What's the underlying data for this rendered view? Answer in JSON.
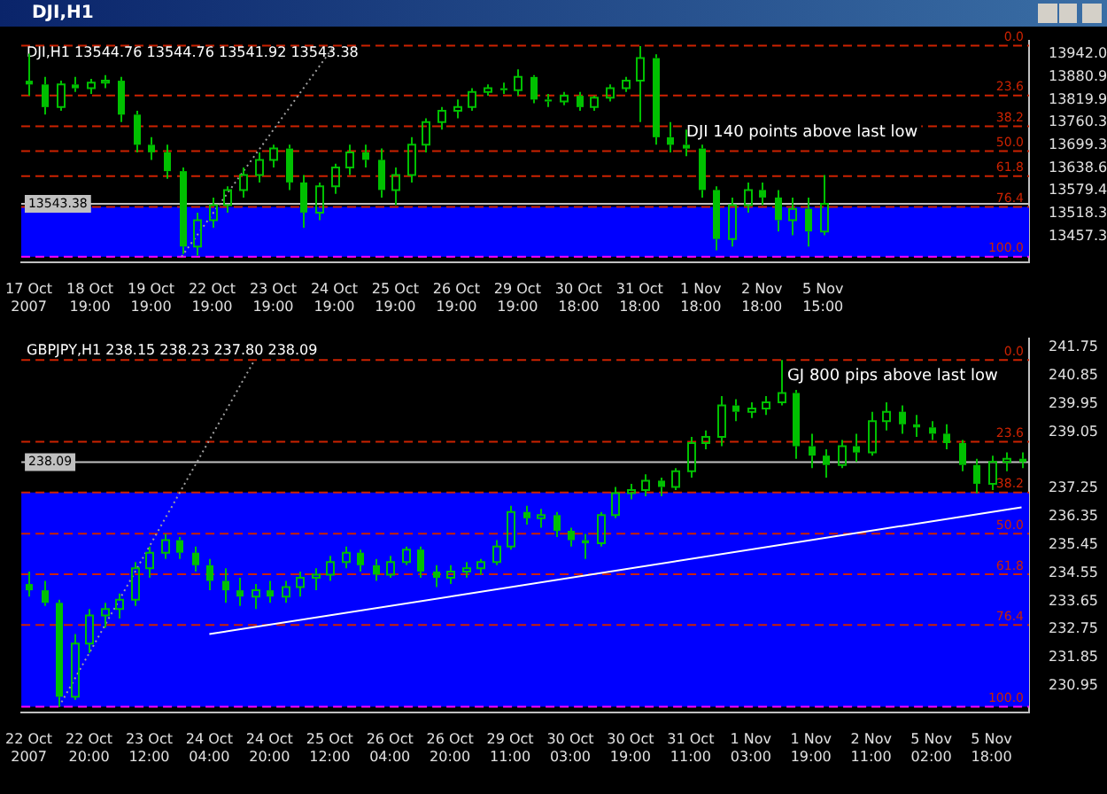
{
  "chart_data": [
    {
      "type": "candlestick",
      "title": "DJI,H1",
      "color": "#00c000",
      "categories": [
        "17 Oct 2007",
        null,
        null,
        null,
        "18 Oct 19:00",
        null,
        null,
        null,
        "19 Oct 19:00",
        null,
        null,
        null,
        "22 Oct 19:00",
        null,
        null,
        null,
        "23 Oct 19:00",
        null,
        null,
        null,
        "24 Oct 19:00",
        null,
        null,
        null,
        "25 Oct 19:00",
        null,
        null,
        null,
        "26 Oct 19:00",
        null,
        null,
        null,
        "29 Oct 19:00",
        null,
        null,
        null,
        "30 Oct 18:00",
        null,
        null,
        null,
        "31 Oct 18:00",
        null,
        null,
        null,
        "1 Nov 18:00",
        null,
        null,
        null,
        "2 Nov 18:00",
        null,
        null,
        null,
        "5 Nov 15:00",
        null,
        null,
        null,
        null,
        null,
        null,
        null,
        null,
        null,
        null,
        null,
        null,
        null
      ],
      "ohlc": [
        [
          13870,
          13942,
          13830,
          13860
        ],
        [
          13860,
          13880,
          13780,
          13800
        ],
        [
          13800,
          13870,
          13790,
          13860
        ],
        [
          13860,
          13880,
          13840,
          13850
        ],
        [
          13850,
          13875,
          13835,
          13865
        ],
        [
          13865,
          13885,
          13850,
          13870
        ],
        [
          13870,
          13880,
          13760,
          13780
        ],
        [
          13780,
          13790,
          13680,
          13700
        ],
        [
          13700,
          13720,
          13660,
          13680
        ],
        [
          13680,
          13700,
          13610,
          13630
        ],
        [
          13630,
          13640,
          13410,
          13430
        ],
        [
          13430,
          13520,
          13405,
          13500
        ],
        [
          13500,
          13560,
          13480,
          13540
        ],
        [
          13540,
          13590,
          13520,
          13580
        ],
        [
          13580,
          13640,
          13560,
          13620
        ],
        [
          13620,
          13680,
          13600,
          13660
        ],
        [
          13660,
          13700,
          13640,
          13690
        ],
        [
          13690,
          13700,
          13580,
          13600
        ],
        [
          13600,
          13620,
          13480,
          13520
        ],
        [
          13520,
          13600,
          13500,
          13590
        ],
        [
          13590,
          13650,
          13570,
          13640
        ],
        [
          13640,
          13700,
          13620,
          13680
        ],
        [
          13680,
          13700,
          13640,
          13660
        ],
        [
          13660,
          13690,
          13560,
          13580
        ],
        [
          13580,
          13640,
          13540,
          13620
        ],
        [
          13620,
          13720,
          13600,
          13700
        ],
        [
          13700,
          13770,
          13680,
          13760
        ],
        [
          13760,
          13800,
          13740,
          13790
        ],
        [
          13790,
          13820,
          13770,
          13800
        ],
        [
          13800,
          13850,
          13790,
          13840
        ],
        [
          13840,
          13860,
          13830,
          13850
        ],
        [
          13850,
          13865,
          13835,
          13845
        ],
        [
          13845,
          13900,
          13830,
          13880
        ],
        [
          13880,
          13885,
          13810,
          13820
        ],
        [
          13820,
          13835,
          13800,
          13815
        ],
        [
          13815,
          13840,
          13805,
          13830
        ],
        [
          13830,
          13840,
          13790,
          13800
        ],
        [
          13800,
          13830,
          13790,
          13825
        ],
        [
          13825,
          13860,
          13815,
          13850
        ],
        [
          13850,
          13880,
          13840,
          13870
        ],
        [
          13870,
          13962,
          13760,
          13930
        ],
        [
          13930,
          13940,
          13700,
          13720
        ],
        [
          13720,
          13760,
          13680,
          13700
        ],
        [
          13700,
          13740,
          13670,
          13690
        ],
        [
          13690,
          13700,
          13560,
          13580
        ],
        [
          13580,
          13590,
          13420,
          13450
        ],
        [
          13450,
          13560,
          13430,
          13540
        ],
        [
          13540,
          13600,
          13520,
          13580
        ],
        [
          13580,
          13600,
          13540,
          13560
        ],
        [
          13560,
          13580,
          13470,
          13500
        ],
        [
          13500,
          13560,
          13460,
          13530
        ],
        [
          13530,
          13560,
          13430,
          13470
        ],
        [
          13470,
          13620,
          13460,
          13543.38
        ],
        null,
        null,
        null,
        null,
        null,
        null,
        null,
        null,
        null,
        null,
        null,
        null,
        null
      ],
      "series": [
        {
          "type": "line",
          "color": "#a0a0a0",
          "line_style": "dotted",
          "values": [
            null,
            null,
            null,
            null,
            null,
            null,
            null,
            null,
            null,
            null,
            13403,
            null,
            null,
            null,
            null,
            null,
            null,
            null,
            null,
            null,
            13963,
            null,
            null,
            null,
            null,
            null,
            null,
            null,
            null,
            null,
            null,
            null,
            null,
            null,
            null,
            null,
            null,
            null,
            null,
            null,
            null,
            null,
            null,
            null,
            null,
            null,
            null,
            null,
            null,
            null,
            null,
            null,
            null,
            null,
            null,
            null,
            null,
            null,
            null,
            null,
            null,
            null,
            null,
            null,
            null,
            null
          ]
        }
      ],
      "ylim": [
        13389,
        13977
      ],
      "yticks": [
        {
          "value": 13942,
          "label": "13942.0"
        },
        13880.9,
        13819.9,
        13760.3,
        13699.3,
        13638.6,
        13579.4,
        13518.3,
        13457.3
      ],
      "bands": [
        {
          "axis": "y",
          "from": 13403,
          "to": 13535,
          "color": "#0000ff"
        }
      ],
      "ref_lines": [
        {
          "axis": "y",
          "value": 13963,
          "color": "#cc2200",
          "line_style": "dashed"
        },
        {
          "axis": "y",
          "value": 13831,
          "color": "#cc2200",
          "line_style": "dashed"
        },
        {
          "axis": "y",
          "value": 13749,
          "color": "#cc2200",
          "line_style": "dashed"
        },
        {
          "axis": "y",
          "value": 13683,
          "color": "#cc2200",
          "line_style": "dashed"
        },
        {
          "axis": "y",
          "value": 13617,
          "color": "#cc2200",
          "line_style": "dashed"
        },
        {
          "axis": "y",
          "value": 13535,
          "color": "#cc2200",
          "line_style": "dashed"
        },
        {
          "axis": "y",
          "value": 13403,
          "color": "#ff00ff",
          "line_style": "dashed"
        },
        {
          "axis": "y",
          "value": 13543.38,
          "label": "13543.38",
          "color": "#c0c0c0",
          "line_style": "solid"
        }
      ],
      "annotations": [
        "DJI,H1 13544.76 13544.76 13541.92 13543.38",
        "DJI 140 points above last low",
        {
          "text": "0.0",
          "y": 13963
        },
        {
          "text": "23.6",
          "y": 13831
        },
        {
          "text": "38.2",
          "y": 13749
        },
        {
          "text": "50.0",
          "y": 13683
        },
        {
          "text": "61.8",
          "y": 13617
        },
        {
          "text": "76.4",
          "y": 13535
        },
        {
          "text": "100.0",
          "y": 13403
        }
      ]
    },
    {
      "type": "candlestick",
      "color": "#00c000",
      "categories": [
        "22 Oct 2007",
        null,
        null,
        null,
        "22 Oct 20:00",
        null,
        null,
        null,
        "23 Oct 12:00",
        null,
        null,
        null,
        "24 Oct 04:00",
        null,
        null,
        null,
        "24 Oct 20:00",
        null,
        null,
        null,
        "25 Oct 12:00",
        null,
        null,
        null,
        "26 Oct 04:00",
        null,
        null,
        null,
        "26 Oct 20:00",
        null,
        null,
        null,
        "29 Oct 11:00",
        null,
        null,
        null,
        "30 Oct 03:00",
        null,
        null,
        null,
        "30 Oct 19:00",
        null,
        null,
        null,
        "31 Oct 11:00",
        null,
        null,
        null,
        "1 Nov 03:00",
        null,
        null,
        null,
        "1 Nov 19:00",
        null,
        null,
        null,
        "2 Nov 11:00",
        null,
        null,
        null,
        "5 Nov 02:00",
        null,
        null,
        null,
        "5 Nov 18:00",
        null,
        null
      ],
      "ohlc": [
        [
          234.2,
          234.6,
          233.8,
          234.0
        ],
        [
          234.0,
          234.3,
          233.5,
          233.6
        ],
        [
          233.6,
          233.7,
          230.28,
          230.6
        ],
        [
          230.6,
          232.6,
          230.5,
          232.3
        ],
        [
          232.3,
          233.4,
          232.0,
          233.2
        ],
        [
          233.2,
          233.6,
          232.8,
          233.4
        ],
        [
          233.4,
          233.9,
          233.1,
          233.7
        ],
        [
          233.7,
          234.9,
          233.5,
          234.7
        ],
        [
          234.7,
          235.4,
          234.4,
          235.2
        ],
        [
          235.2,
          235.8,
          235.0,
          235.6
        ],
        [
          235.6,
          235.7,
          235.0,
          235.2
        ],
        [
          235.2,
          235.4,
          234.6,
          234.8
        ],
        [
          234.8,
          235.0,
          234.0,
          234.3
        ],
        [
          234.3,
          234.7,
          233.6,
          234.0
        ],
        [
          234.0,
          234.4,
          233.5,
          233.8
        ],
        [
          233.8,
          234.2,
          233.4,
          234.0
        ],
        [
          234.0,
          234.3,
          233.6,
          233.8
        ],
        [
          233.8,
          234.3,
          233.6,
          234.1
        ],
        [
          234.1,
          234.6,
          233.8,
          234.4
        ],
        [
          234.4,
          234.7,
          234.0,
          234.5
        ],
        [
          234.5,
          235.1,
          234.3,
          234.9
        ],
        [
          234.9,
          235.4,
          234.7,
          235.2
        ],
        [
          235.2,
          235.3,
          234.6,
          234.8
        ],
        [
          234.8,
          235.0,
          234.3,
          234.5
        ],
        [
          234.5,
          235.1,
          234.4,
          234.9
        ],
        [
          234.9,
          235.4,
          234.8,
          235.3
        ],
        [
          235.3,
          235.4,
          234.4,
          234.6
        ],
        [
          234.6,
          234.8,
          234.1,
          234.4
        ],
        [
          234.4,
          234.8,
          234.2,
          234.6
        ],
        [
          234.6,
          234.9,
          234.4,
          234.7
        ],
        [
          234.7,
          235.0,
          234.5,
          234.9
        ],
        [
          234.9,
          235.6,
          234.8,
          235.4
        ],
        [
          235.4,
          236.7,
          235.3,
          236.5
        ],
        [
          236.5,
          236.7,
          236.1,
          236.3
        ],
        [
          236.3,
          236.6,
          236.0,
          236.4
        ],
        [
          236.4,
          236.5,
          235.7,
          235.9
        ],
        [
          235.9,
          236.0,
          235.4,
          235.6
        ],
        [
          235.6,
          235.8,
          235.0,
          235.5
        ],
        [
          235.5,
          236.5,
          235.4,
          236.4
        ],
        [
          236.4,
          237.3,
          236.3,
          237.1
        ],
        [
          237.1,
          237.4,
          236.9,
          237.2
        ],
        [
          237.2,
          237.7,
          237.0,
          237.5
        ],
        [
          237.5,
          237.6,
          237.0,
          237.3
        ],
        [
          237.3,
          237.9,
          237.2,
          237.8
        ],
        [
          237.8,
          238.9,
          237.6,
          238.7
        ],
        [
          238.7,
          239.1,
          238.5,
          238.9
        ],
        [
          238.9,
          240.2,
          238.6,
          239.9
        ],
        [
          239.9,
          240.1,
          239.4,
          239.7
        ],
        [
          239.7,
          240.0,
          239.5,
          239.8
        ],
        [
          239.8,
          240.2,
          239.6,
          240.0
        ],
        [
          240.0,
          241.35,
          239.9,
          240.3
        ],
        [
          240.3,
          240.4,
          238.2,
          238.6
        ],
        [
          238.6,
          239.0,
          237.9,
          238.3
        ],
        [
          238.3,
          238.5,
          237.6,
          238.0
        ],
        [
          238.0,
          238.8,
          237.9,
          238.6
        ],
        [
          238.6,
          239.0,
          238.1,
          238.4
        ],
        [
          238.4,
          239.7,
          238.3,
          239.4
        ],
        [
          239.4,
          240.0,
          239.1,
          239.7
        ],
        [
          239.7,
          239.9,
          239.0,
          239.3
        ],
        [
          239.3,
          239.6,
          238.9,
          239.2
        ],
        [
          239.2,
          239.4,
          238.8,
          239.0
        ],
        [
          239.0,
          239.3,
          238.5,
          238.7
        ],
        [
          238.7,
          238.8,
          237.8,
          238.0
        ],
        [
          238.0,
          238.2,
          237.1,
          237.4
        ],
        [
          237.4,
          238.3,
          237.2,
          238.1
        ],
        [
          238.1,
          238.4,
          237.8,
          238.2
        ],
        [
          238.2,
          238.4,
          237.9,
          238.09
        ]
      ],
      "series": [
        {
          "type": "line",
          "color": "#a0a0a0",
          "line_style": "dotted",
          "values": [
            null,
            null,
            230.28,
            null,
            null,
            null,
            null,
            null,
            null,
            null,
            null,
            null,
            null,
            null,
            null,
            241.35,
            null,
            null,
            null,
            null,
            null,
            null,
            null,
            null,
            null,
            null,
            null,
            null,
            null,
            null,
            null,
            null,
            null,
            null,
            null,
            null,
            null,
            null,
            null,
            null,
            null,
            null,
            null,
            null,
            null,
            null,
            null,
            null,
            null,
            null,
            null,
            null,
            null,
            null,
            null,
            null,
            null,
            null,
            null,
            null,
            null,
            null,
            null,
            null,
            null,
            null,
            null
          ]
        },
        {
          "type": "line",
          "color": "#ffffff",
          "line_style": "solid",
          "values": [
            null,
            null,
            null,
            null,
            null,
            null,
            null,
            null,
            null,
            null,
            null,
            null,
            232.6,
            null,
            null,
            null,
            null,
            null,
            null,
            null,
            null,
            null,
            null,
            null,
            null,
            null,
            null,
            null,
            null,
            null,
            null,
            null,
            null,
            null,
            null,
            null,
            null,
            null,
            null,
            null,
            null,
            null,
            null,
            null,
            null,
            null,
            null,
            null,
            null,
            null,
            null,
            null,
            null,
            null,
            null,
            null,
            null,
            null,
            null,
            null,
            null,
            null,
            null,
            null,
            null,
            null,
            236.65
          ]
        }
      ],
      "ylim": [
        230.11,
        242.05
      ],
      "yticks": [
        241.75,
        240.85,
        239.95,
        239.05,
        237.25,
        236.35,
        235.45,
        234.55,
        233.65,
        232.75,
        231.85,
        230.95
      ],
      "bands": [
        {
          "axis": "y",
          "from": 230.28,
          "to": 237.12,
          "color": "#0000ff"
        }
      ],
      "ref_lines": [
        {
          "axis": "y",
          "value": 241.35,
          "color": "#cc2200",
          "line_style": "dashed"
        },
        {
          "axis": "y",
          "value": 238.74,
          "color": "#cc2200",
          "line_style": "dashed"
        },
        {
          "axis": "y",
          "value": 237.12,
          "color": "#cc2200",
          "line_style": "dashed"
        },
        {
          "axis": "y",
          "value": 235.81,
          "color": "#cc2200",
          "line_style": "dashed"
        },
        {
          "axis": "y",
          "value": 234.51,
          "color": "#cc2200",
          "line_style": "dashed"
        },
        {
          "axis": "y",
          "value": 232.89,
          "color": "#cc2200",
          "line_style": "dashed"
        },
        {
          "axis": "y",
          "value": 230.28,
          "color": "#ff00ff",
          "line_style": "dashed"
        },
        {
          "axis": "y",
          "value": 238.09,
          "label": "238.09",
          "color": "#c0c0c0",
          "line_style": "solid"
        }
      ],
      "annotations": [
        "GBPJPY,H1 238.15 238.23 237.80 238.09",
        "GJ 800 pips above last low",
        {
          "text": "0.0",
          "y": 241.35
        },
        {
          "text": "23.6",
          "y": 238.74
        },
        {
          "text": "38.2",
          "y": 237.12
        },
        {
          "text": "50.0",
          "y": 235.81
        },
        {
          "text": "61.8",
          "y": 234.51
        },
        {
          "text": "76.4",
          "y": 232.89
        },
        {
          "text": "100.0",
          "y": 230.28
        }
      ]
    }
  ]
}
